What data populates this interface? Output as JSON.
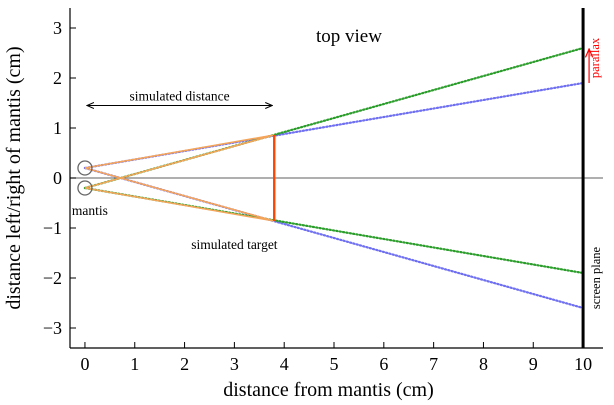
{
  "chart_data": {
    "type": "line",
    "title": "top view",
    "xlabel": "distance from mantis (cm)",
    "ylabel": "distance left/right of mantis (cm)",
    "xlim": [
      -0.3,
      10.4
    ],
    "ylim": [
      -3.4,
      3.4
    ],
    "xticks": [
      0,
      1,
      2,
      3,
      4,
      5,
      6,
      7,
      8,
      9,
      10
    ],
    "yticks": [
      -3,
      -2,
      -1,
      0,
      1,
      2,
      3
    ],
    "xtick_labels": [
      "0",
      "1",
      "2",
      "3",
      "4",
      "5",
      "6",
      "7",
      "8",
      "9",
      "10"
    ],
    "ytick_labels": [
      "−3",
      "−2",
      "−1",
      "0",
      "1",
      "2",
      "3"
    ],
    "grid": false,
    "colors": {
      "blue": "#6f6ff2",
      "green": "#2a9d2a",
      "orange": "#f5a55a",
      "target": "#ff4500",
      "parallax": "#ff0000",
      "axis": "#000000",
      "zero_line": "#7f7f7f"
    },
    "eyes": [
      {
        "x": 0,
        "y": 0.2
      },
      {
        "x": 0,
        "y": -0.2
      }
    ],
    "screen_plane": {
      "x": 10,
      "y_range": [
        -3.4,
        3.4
      ]
    },
    "simulated_target": {
      "x": 3.8,
      "y_range": [
        -0.86,
        0.86
      ]
    },
    "series": [
      {
        "color": "blue",
        "style": "dotted",
        "points": [
          [
            0,
            0.2
          ],
          [
            10,
            1.9
          ]
        ]
      },
      {
        "color": "blue",
        "style": "dotted",
        "points": [
          [
            0,
            0.2
          ],
          [
            10,
            -2.6
          ]
        ]
      },
      {
        "color": "green",
        "style": "dotted",
        "points": [
          [
            0,
            -0.2
          ],
          [
            10,
            2.6
          ]
        ]
      },
      {
        "color": "green",
        "style": "dotted",
        "points": [
          [
            0,
            -0.2
          ],
          [
            10,
            -1.9
          ]
        ]
      },
      {
        "color": "orange",
        "style": "solid",
        "points": [
          [
            0,
            0.2
          ],
          [
            3.8,
            0.86
          ]
        ]
      },
      {
        "color": "orange",
        "style": "solid",
        "points": [
          [
            0,
            -0.2
          ],
          [
            3.8,
            0.86
          ]
        ]
      },
      {
        "color": "orange",
        "style": "solid",
        "points": [
          [
            0,
            0.2
          ],
          [
            3.8,
            -0.86
          ]
        ]
      },
      {
        "color": "orange",
        "style": "solid",
        "points": [
          [
            0,
            -0.2
          ],
          [
            3.8,
            -0.86
          ]
        ]
      }
    ],
    "parallax": {
      "x": 10,
      "y_range": [
        1.9,
        2.6
      ]
    },
    "simulated_distance_arrow": {
      "x_range": [
        0,
        3.8
      ],
      "y": 1.45
    },
    "annotations": {
      "title": "top view",
      "simulated_distance": "simulated distance",
      "simulated_target": "simulated target",
      "mantis": "mantis",
      "screen_plane": "screen plane",
      "parallax": "parallax"
    }
  }
}
